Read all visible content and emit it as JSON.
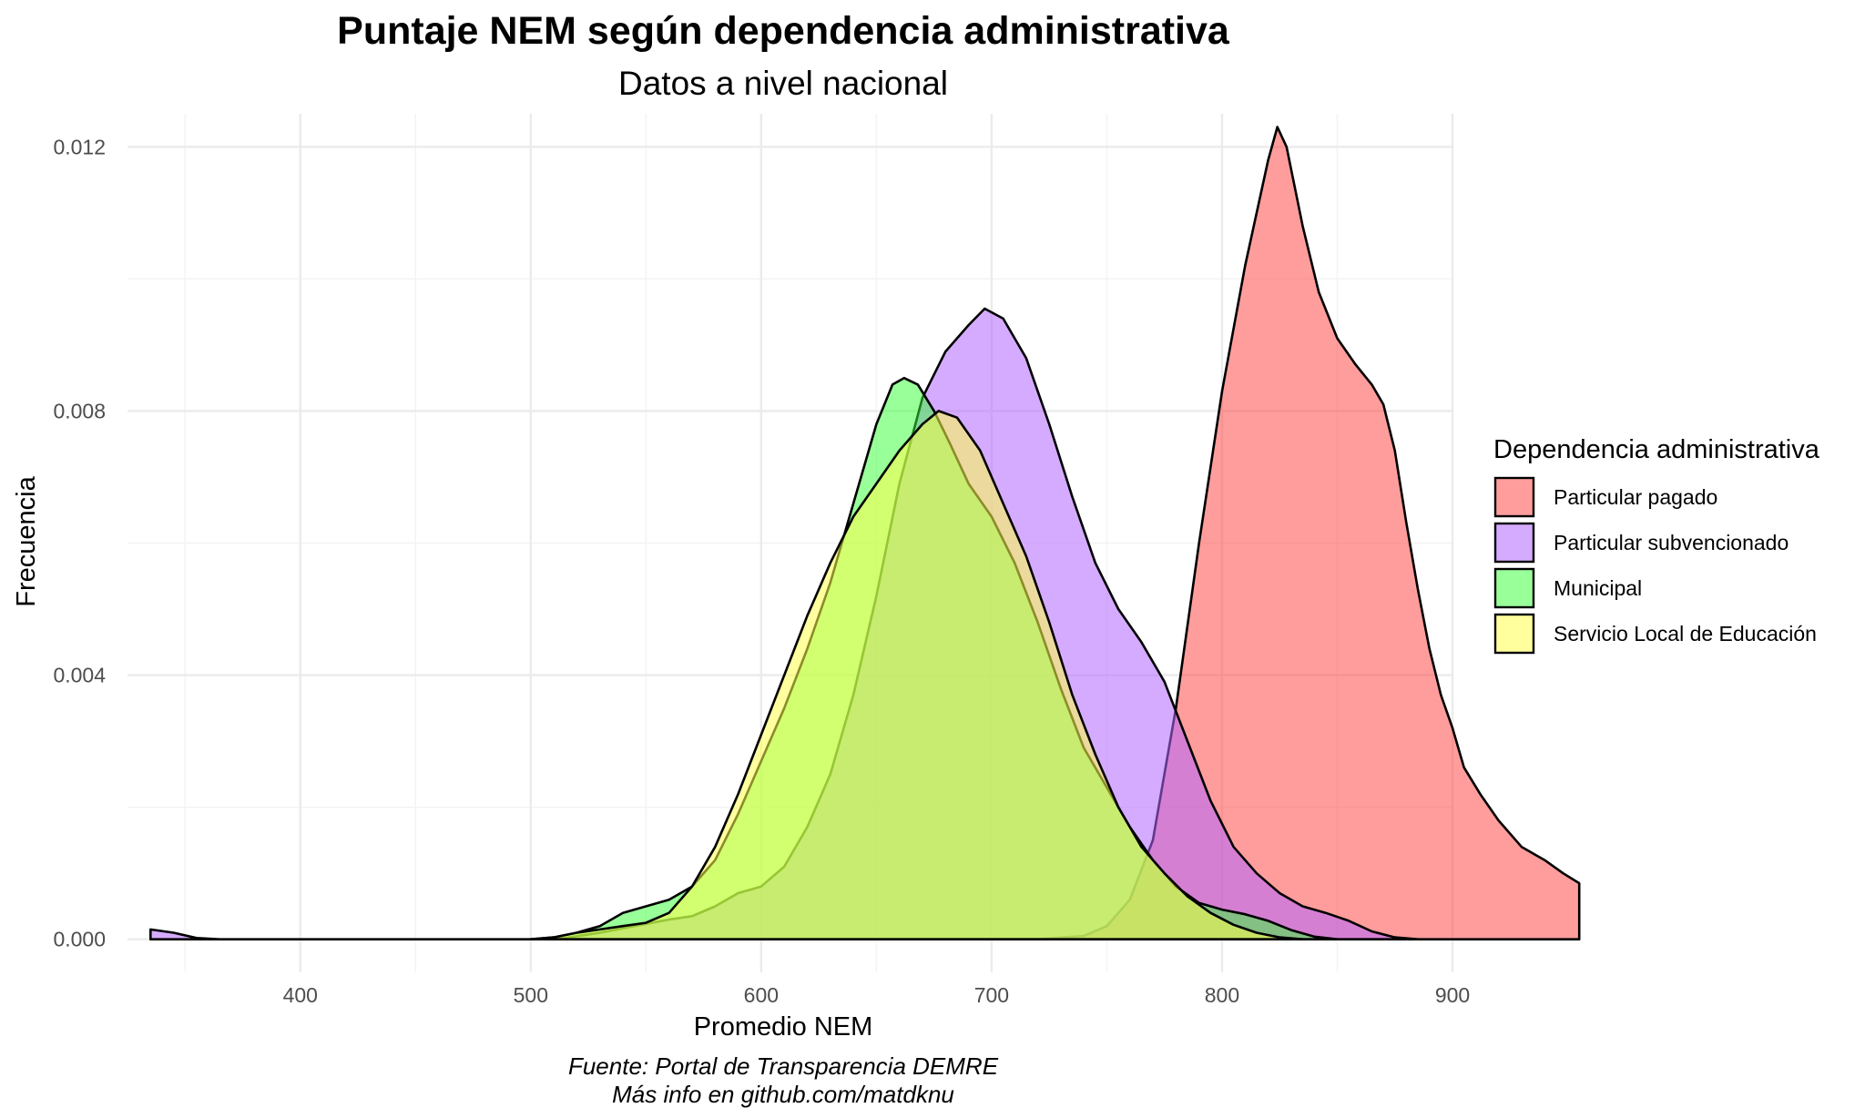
{
  "chart_data": {
    "type": "area",
    "title": "Puntaje NEM según dependencia administrativa",
    "subtitle": "Datos a nivel nacional",
    "xlabel": "Promedio NEM",
    "ylabel": "Frecuencia",
    "xlim": [
      325,
      900
    ],
    "ylim": [
      -0.0005,
      0.0125
    ],
    "x_ticks": [
      400,
      500,
      600,
      700,
      800,
      900
    ],
    "x_tick_labels": [
      "400",
      "500",
      "600",
      "700",
      "800",
      "900"
    ],
    "y_ticks": [
      0,
      0.004,
      0.008,
      0.012
    ],
    "y_tick_labels": [
      "0.000",
      "0.004",
      "0.008",
      "0.012"
    ],
    "grid": true,
    "legend": {
      "title": "Dependencia administrativa",
      "placement": "right"
    },
    "caption": [
      "Fuente: Portal de Transparencia DEMRE",
      "Más info en github.com/matdknu"
    ],
    "series": [
      {
        "name": "Particular pagado",
        "color": "#FF3B3B",
        "opacity": 0.5,
        "points": [
          [
            700,
            0
          ],
          [
            720,
            0
          ],
          [
            740,
            5e-05
          ],
          [
            750,
            0.0002
          ],
          [
            760,
            0.0006
          ],
          [
            770,
            0.0015
          ],
          [
            780,
            0.0035
          ],
          [
            790,
            0.006
          ],
          [
            800,
            0.0083
          ],
          [
            810,
            0.0102
          ],
          [
            820,
            0.0118
          ],
          [
            824,
            0.0123
          ],
          [
            828,
            0.012
          ],
          [
            835,
            0.0108
          ],
          [
            842,
            0.0098
          ],
          [
            850,
            0.0091
          ],
          [
            858,
            0.0087
          ],
          [
            865,
            0.0084
          ],
          [
            870,
            0.0081
          ],
          [
            875,
            0.0074
          ],
          [
            880,
            0.0063
          ],
          [
            885,
            0.0053
          ],
          [
            890,
            0.0044
          ],
          [
            895,
            0.0037
          ],
          [
            900,
            0.0032
          ],
          [
            905,
            0.0026
          ],
          [
            912,
            0.0022
          ],
          [
            920,
            0.0018
          ],
          [
            930,
            0.0014
          ],
          [
            940,
            0.0012
          ],
          [
            948,
            0.001
          ],
          [
            955,
            0.00085
          ]
        ]
      },
      {
        "name": "Particular subvencionado",
        "color": "#B266FF",
        "opacity": 0.55,
        "points": [
          [
            335,
            0.00015
          ],
          [
            345,
            0.0001
          ],
          [
            355,
            2e-05
          ],
          [
            365,
            0
          ],
          [
            500,
            0
          ],
          [
            515,
            2e-05
          ],
          [
            530,
            0.0001
          ],
          [
            545,
            0.0002
          ],
          [
            560,
            0.0003
          ],
          [
            570,
            0.00035
          ],
          [
            580,
            0.0005
          ],
          [
            590,
            0.0007
          ],
          [
            600,
            0.0008
          ],
          [
            610,
            0.0011
          ],
          [
            620,
            0.0017
          ],
          [
            630,
            0.0025
          ],
          [
            640,
            0.0037
          ],
          [
            650,
            0.0052
          ],
          [
            660,
            0.0069
          ],
          [
            670,
            0.0082
          ],
          [
            680,
            0.0089
          ],
          [
            690,
            0.0093
          ],
          [
            697,
            0.00955
          ],
          [
            705,
            0.0094
          ],
          [
            715,
            0.0088
          ],
          [
            725,
            0.0078
          ],
          [
            735,
            0.0067
          ],
          [
            745,
            0.0057
          ],
          [
            755,
            0.005
          ],
          [
            765,
            0.0045
          ],
          [
            775,
            0.0039
          ],
          [
            785,
            0.003
          ],
          [
            795,
            0.0021
          ],
          [
            805,
            0.0014
          ],
          [
            815,
            0.001
          ],
          [
            825,
            0.0007
          ],
          [
            835,
            0.0005
          ],
          [
            845,
            0.0004
          ],
          [
            855,
            0.00028
          ],
          [
            865,
            0.00012
          ],
          [
            875,
            3e-05
          ],
          [
            885,
            0
          ]
        ]
      },
      {
        "name": "Municipal",
        "color": "#33FF33",
        "opacity": 0.5,
        "points": [
          [
            500,
            0
          ],
          [
            510,
            3e-05
          ],
          [
            520,
            0.0001
          ],
          [
            530,
            0.0002
          ],
          [
            540,
            0.0004
          ],
          [
            550,
            0.0005
          ],
          [
            560,
            0.0006
          ],
          [
            570,
            0.0008
          ],
          [
            580,
            0.0012
          ],
          [
            590,
            0.0019
          ],
          [
            600,
            0.0027
          ],
          [
            610,
            0.0035
          ],
          [
            620,
            0.0044
          ],
          [
            630,
            0.0054
          ],
          [
            640,
            0.0066
          ],
          [
            650,
            0.0078
          ],
          [
            657,
            0.0084
          ],
          [
            662,
            0.0085
          ],
          [
            668,
            0.0084
          ],
          [
            675,
            0.008
          ],
          [
            682,
            0.0075
          ],
          [
            690,
            0.0069
          ],
          [
            700,
            0.0064
          ],
          [
            710,
            0.0057
          ],
          [
            720,
            0.0048
          ],
          [
            730,
            0.0038
          ],
          [
            740,
            0.0029
          ],
          [
            750,
            0.0023
          ],
          [
            760,
            0.0017
          ],
          [
            770,
            0.0012
          ],
          [
            780,
            0.0008
          ],
          [
            790,
            0.00055
          ],
          [
            800,
            0.00045
          ],
          [
            810,
            0.00038
          ],
          [
            820,
            0.00028
          ],
          [
            830,
            0.00014
          ],
          [
            840,
            4e-05
          ],
          [
            850,
            0
          ]
        ]
      },
      {
        "name": "Servicio Local de Educación",
        "color": "#FFFF4D",
        "opacity": 0.55,
        "points": [
          [
            500,
            0
          ],
          [
            510,
            3e-05
          ],
          [
            520,
            0.0001
          ],
          [
            530,
            0.00015
          ],
          [
            540,
            0.0002
          ],
          [
            550,
            0.00025
          ],
          [
            560,
            0.0004
          ],
          [
            570,
            0.0008
          ],
          [
            580,
            0.0014
          ],
          [
            590,
            0.0022
          ],
          [
            600,
            0.0031
          ],
          [
            610,
            0.004
          ],
          [
            620,
            0.0049
          ],
          [
            630,
            0.0057
          ],
          [
            640,
            0.0064
          ],
          [
            650,
            0.0069
          ],
          [
            660,
            0.0074
          ],
          [
            670,
            0.0078
          ],
          [
            677,
            0.008
          ],
          [
            685,
            0.0079
          ],
          [
            695,
            0.0074
          ],
          [
            705,
            0.0066
          ],
          [
            715,
            0.0058
          ],
          [
            725,
            0.0048
          ],
          [
            735,
            0.0037
          ],
          [
            745,
            0.0028
          ],
          [
            755,
            0.002
          ],
          [
            765,
            0.0014
          ],
          [
            775,
            0.001
          ],
          [
            785,
            0.00065
          ],
          [
            795,
            0.0004
          ],
          [
            805,
            0.00022
          ],
          [
            815,
            0.0001
          ],
          [
            825,
            3e-05
          ],
          [
            835,
            0
          ]
        ]
      }
    ]
  }
}
